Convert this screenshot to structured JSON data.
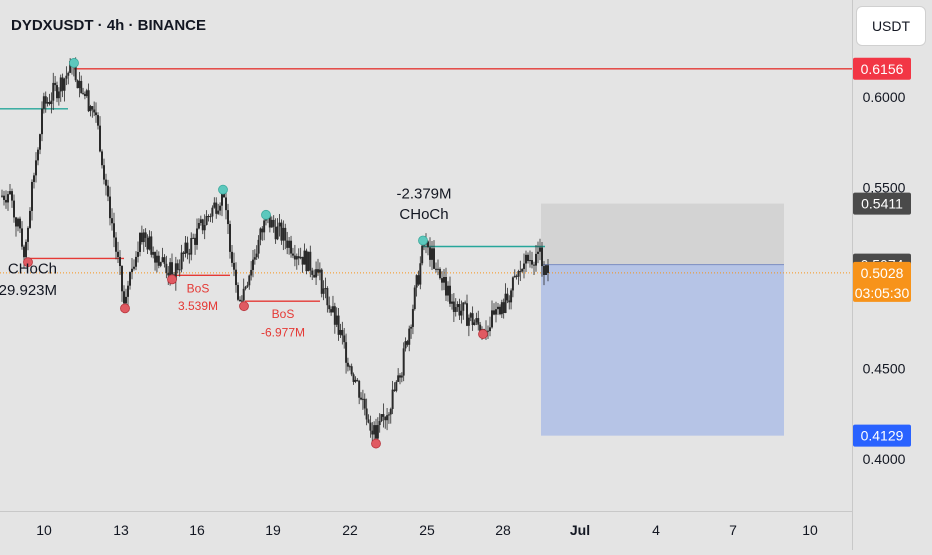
{
  "header": {
    "symbol": "DYDXUSDT · 4h · BINANCE"
  },
  "currency_button": {
    "label": "USDT"
  },
  "colors": {
    "background": "#e4e4e4",
    "candle": "#2a2a2a",
    "bos_line": "#e53935",
    "choch_line": "#26a69a",
    "swing_high_dot": "#5cc8bd",
    "swing_low_dot": "#e05a62",
    "target_zone": "#b6c4e6",
    "stop_zone": "#d3d3d3",
    "price_badge_red": "#f23645",
    "price_badge_dark": "#4a4a4a",
    "price_badge_orange": "#f7931a",
    "price_badge_blue": "#2962ff"
  },
  "chart_data": {
    "type": "candlestick",
    "x_axis": {
      "tick_labels": [
        "10",
        "13",
        "16",
        "19",
        "22",
        "25",
        "28",
        "Jul",
        "4",
        "7",
        "10"
      ]
    },
    "y_axis": {
      "tick_labels": [
        "0.6000",
        "0.5500",
        "0.4500",
        "0.4000"
      ],
      "range": [
        0.37,
        0.64
      ]
    },
    "price_labels": [
      {
        "label": "0.6156",
        "value": 0.6156,
        "style": "red"
      },
      {
        "label": "0.5411",
        "value": 0.5411,
        "style": "dark"
      },
      {
        "label": "0.5074",
        "value": 0.5074,
        "style": "dark"
      },
      {
        "label": "0.5028",
        "value": 0.5028,
        "style": "orange",
        "countdown": "03:05:30"
      },
      {
        "label": "0.4129",
        "value": 0.4129,
        "style": "blue"
      }
    ],
    "swing_points": [
      {
        "value": 0.6166,
        "type": "high"
      },
      {
        "value": 0.5115,
        "type": "low"
      },
      {
        "value": 0.486,
        "type": "low"
      },
      {
        "value": 0.502,
        "type": "low"
      },
      {
        "value": 0.5466,
        "type": "high"
      },
      {
        "value": 0.4872,
        "type": "low"
      },
      {
        "value": 0.5327,
        "type": "high"
      },
      {
        "value": 0.4113,
        "type": "low"
      },
      {
        "value": 0.5185,
        "type": "high"
      },
      {
        "value": 0.4718,
        "type": "low"
      }
    ],
    "structure_lines": [
      {
        "value": 0.6156,
        "kind": "bos-red"
      },
      {
        "value": 0.5935,
        "kind": "choch-teal"
      },
      {
        "value": 0.5108,
        "kind": "bos-red"
      },
      {
        "value": 0.5015,
        "kind": "bos-red"
      },
      {
        "value": 0.4872,
        "kind": "bos-red"
      },
      {
        "value": 0.5174,
        "kind": "choch-teal"
      }
    ],
    "annotations": [
      {
        "label": "CHoCh",
        "volume": "29.923M",
        "color": "dark"
      },
      {
        "label": "BoS",
        "volume": "3.539M",
        "color": "red"
      },
      {
        "label": "BoS",
        "volume": "-6.977M",
        "color": "red"
      },
      {
        "label": "CHoCh",
        "volume": "-2.379M",
        "color": "dark"
      }
    ],
    "position": {
      "entry": 0.5074,
      "stop": 0.5411,
      "target": 0.4129
    },
    "last_price": 0.5028
  }
}
